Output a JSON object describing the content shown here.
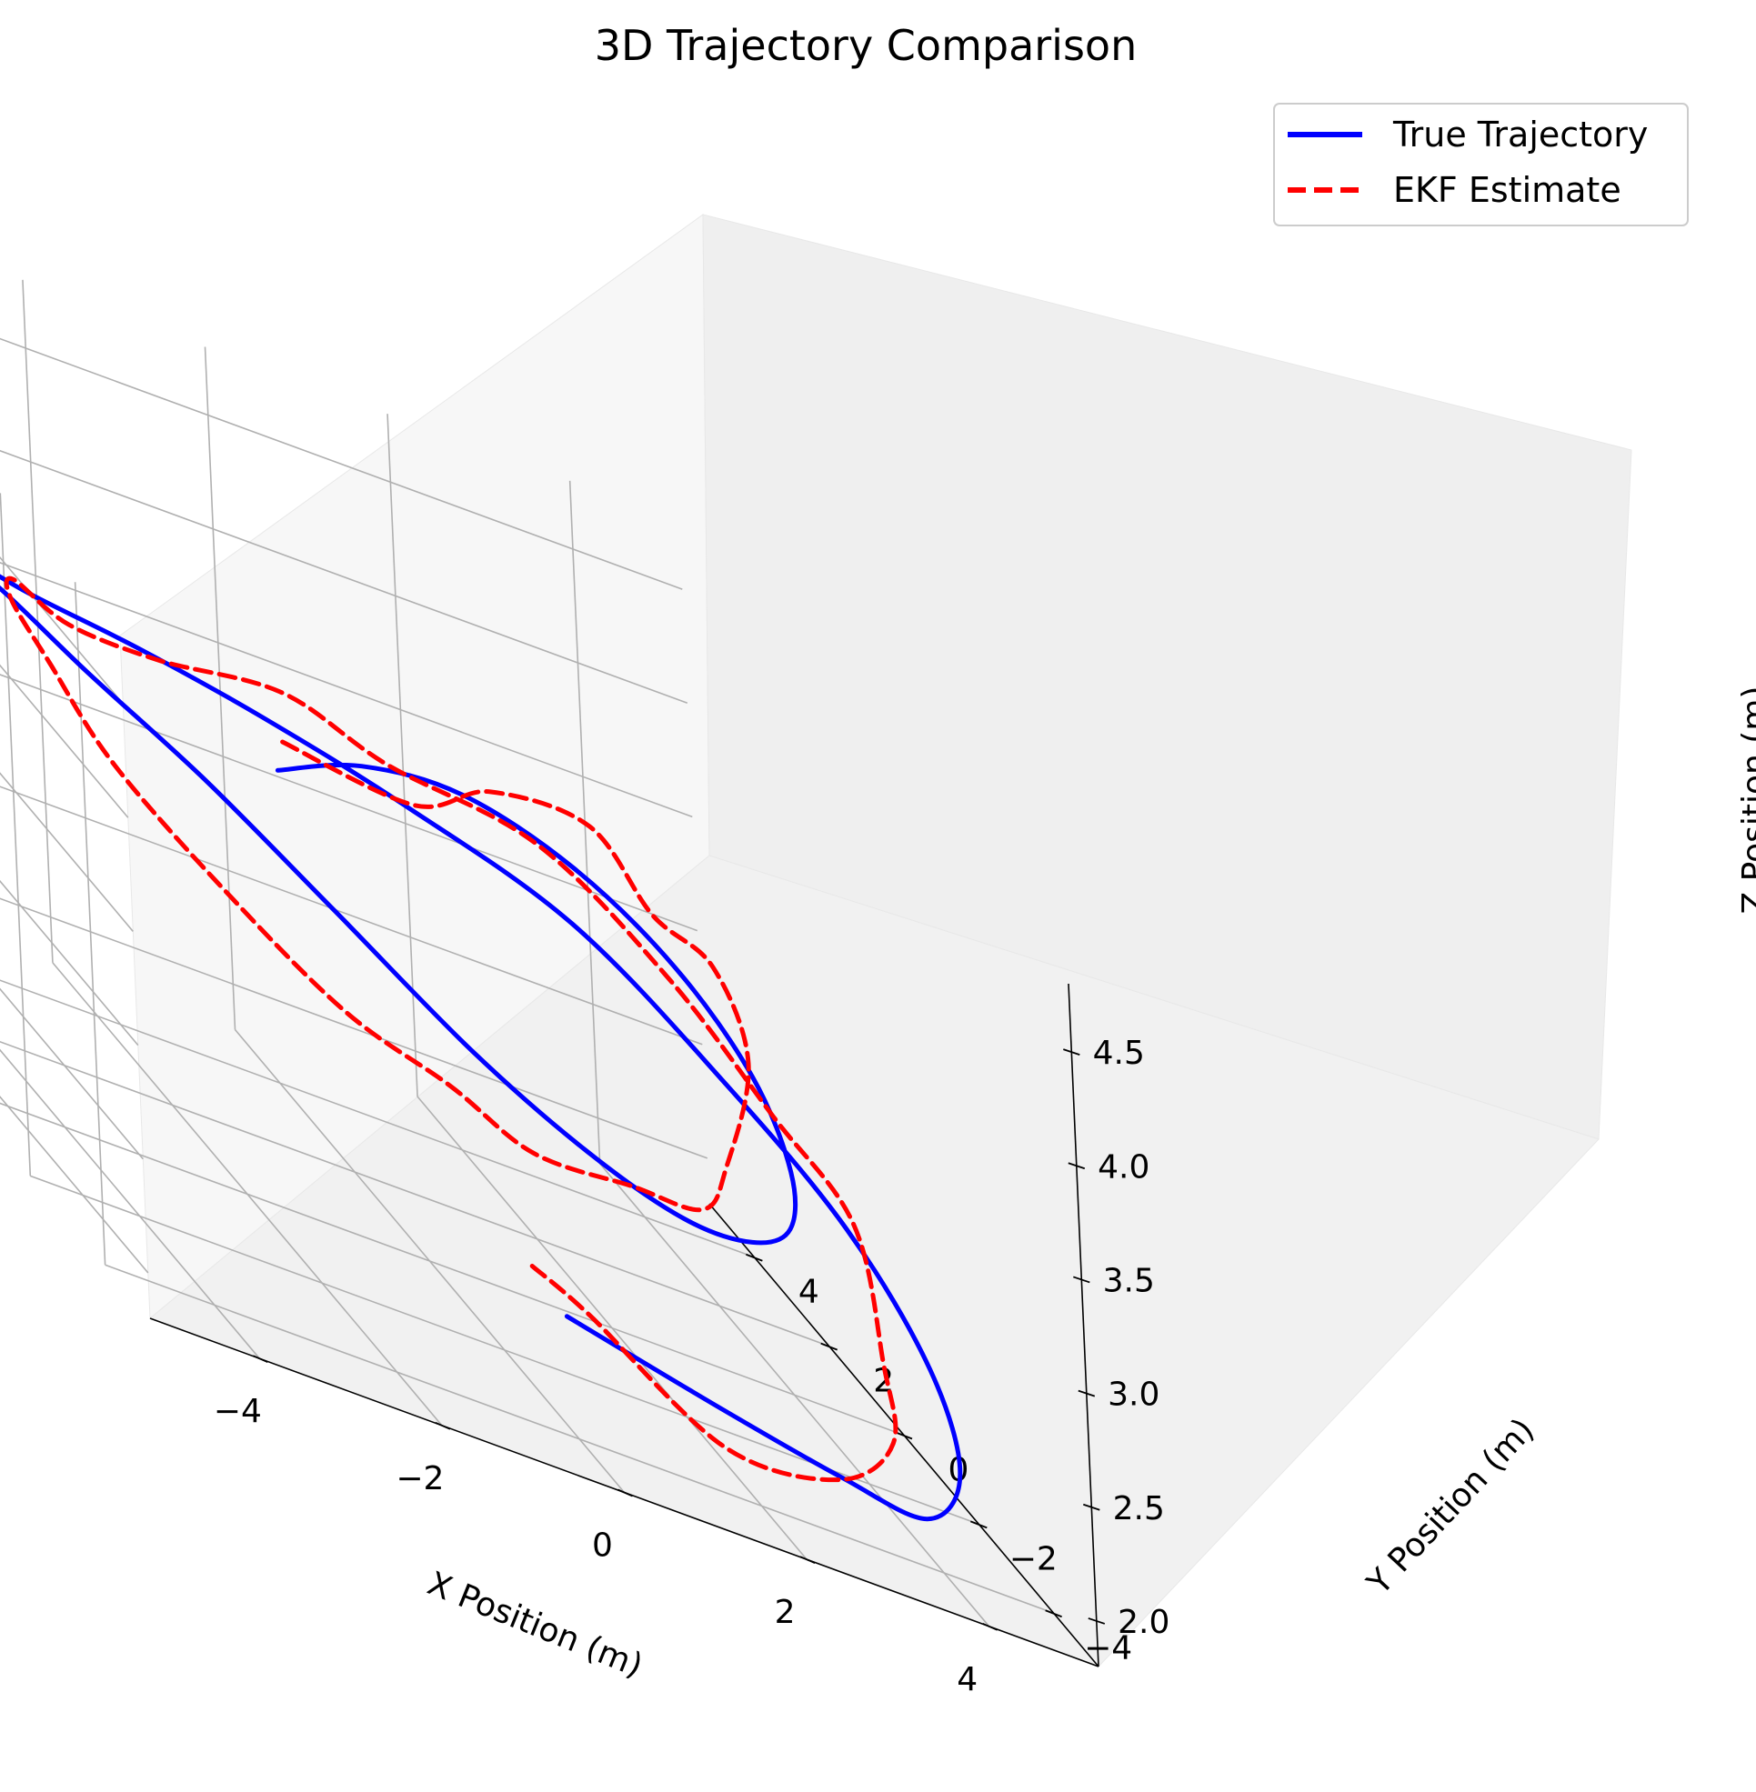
{
  "chart_data": {
    "type": "line",
    "projection": "3d",
    "title": "3D Trajectory Comparison",
    "xlabel": "X Position (m)",
    "ylabel": "Y Position (m)",
    "zlabel": "Z Position (m)",
    "xlim": [
      -5.2,
      5.2
    ],
    "ylim": [
      -5.2,
      5.2
    ],
    "zlim": [
      1.8,
      4.8
    ],
    "x_ticks": [
      "−4",
      "−2",
      "0",
      "2",
      "4"
    ],
    "y_ticks": [
      "−4",
      "−2",
      "0",
      "2",
      "4"
    ],
    "z_ticks": [
      "2.0",
      "2.5",
      "3.0",
      "3.5",
      "4.0",
      "4.5"
    ],
    "grid": true,
    "legend_position": "top-right",
    "series": [
      {
        "name": "True Trajectory",
        "color": "#0000ff",
        "style": "solid",
        "x": [
          0.0,
          1.47,
          2.78,
          3.88,
          4.7,
          5.05,
          4.88,
          4.18,
          3.02,
          1.52,
          -0.02,
          -1.48,
          -2.98,
          -4.16,
          -4.91,
          -5.04,
          -4.62,
          -3.76,
          -2.59,
          -1.13,
          0.36,
          1.86,
          3.21,
          4.27,
          4.9,
          4.99,
          4.5,
          3.5,
          2.13,
          0.63,
          -0.9
        ],
        "y": [
          -3.8,
          -4.2,
          -4.3,
          -3.9,
          -2.8,
          -1.2,
          0.55,
          2.05,
          3.2,
          3.95,
          4.05,
          3.7,
          2.95,
          1.75,
          0.2,
          -1.45,
          -2.8,
          -3.8,
          -4.3,
          -4.3,
          -3.65,
          -2.5,
          -1.0,
          0.6,
          2.1,
          3.3,
          4.1,
          4.3,
          3.9,
          2.9,
          1.4
        ],
        "z": [
          2.3,
          2.2,
          2.1,
          2.0,
          2.1,
          2.3,
          2.55,
          2.8,
          3.1,
          3.25,
          3.4,
          3.55,
          3.72,
          3.95,
          4.15,
          4.3,
          4.25,
          4.1,
          3.8,
          3.4,
          3.05,
          2.75,
          2.55,
          2.45,
          2.5,
          2.7,
          2.95,
          3.2,
          3.4,
          3.5,
          3.55
        ]
      },
      {
        "name": "EKF Estimate",
        "color": "#ff0000",
        "style": "dashed",
        "x": [
          -0.6,
          0.23,
          1.48,
          2.85,
          3.91,
          4.55,
          4.91,
          4.73,
          4.05,
          2.92,
          1.43,
          0.06,
          -1.61,
          -3.05,
          -4.19,
          -4.95,
          -5.07,
          -4.74,
          -3.83,
          -2.5,
          -1.19,
          0.27,
          1.85,
          3.26,
          4.22,
          4.93,
          4.96,
          4.38,
          3.5,
          2.1,
          0.65,
          -0.9
        ],
        "y": [
          -4.4,
          -3.85,
          -4.35,
          -4.05,
          -2.95,
          -1.15,
          0.42,
          2.1,
          3.12,
          3.83,
          4.2,
          3.61,
          2.83,
          1.68,
          0.3,
          -1.55,
          -2.85,
          -3.69,
          -4.4,
          -4.25,
          -3.82,
          -2.39,
          -1.12,
          0.49,
          2.2,
          3.24,
          4.2,
          4.37,
          3.81,
          3.02,
          1.53,
          1.3
        ],
        "z": [
          2.55,
          2.35,
          2.05,
          2.05,
          2.15,
          2.25,
          2.6,
          2.72,
          3.02,
          3.31,
          3.37,
          3.6,
          3.65,
          3.82,
          4.12,
          4.28,
          4.24,
          4.01,
          3.72,
          3.36,
          3.14,
          2.78,
          2.62,
          2.41,
          2.4,
          2.76,
          3.0,
          3.11,
          3.48,
          3.58,
          3.6,
          3.7
        ]
      }
    ]
  }
}
